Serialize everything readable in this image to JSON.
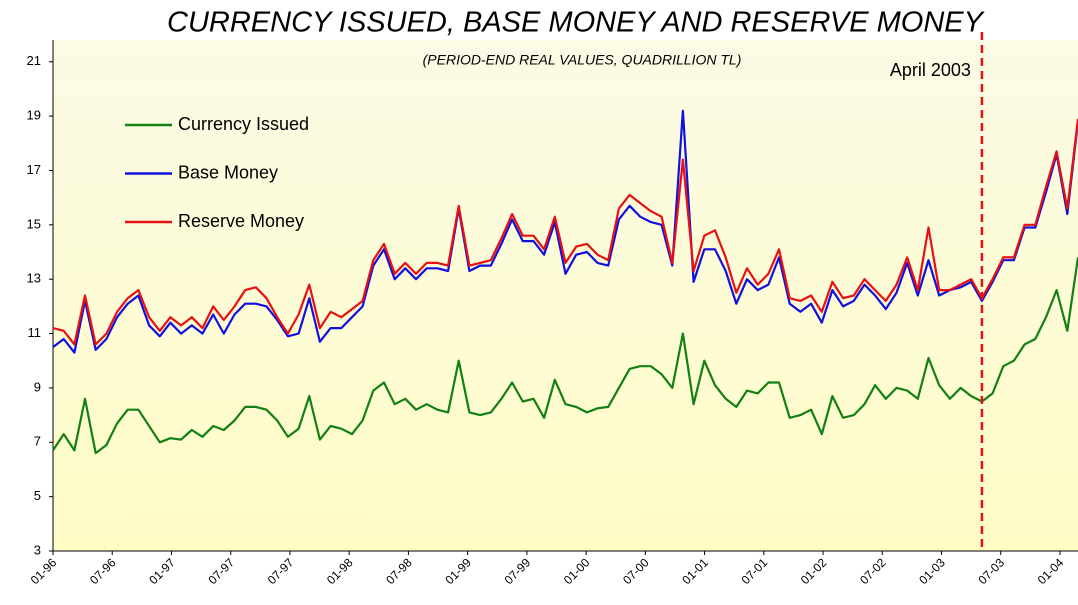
{
  "chart_data": {
    "type": "line",
    "title": "CURRENCY ISSUED, BASE MONEY AND RESERVE MONEY",
    "subtitle": "(PERIOD-END REAL VALUES, QUADRILLION TL)",
    "x_labels": [
      "01-96",
      "07-96",
      "01-97",
      "07-97",
      "07-97",
      "01-98",
      "07-98",
      "01-99",
      "07-99",
      "01-00",
      "07-00",
      "01-01",
      "07-01",
      "01-02",
      "07-02",
      "01-03",
      "07-03",
      "01-04"
    ],
    "ylim": [
      3,
      21.8
    ],
    "yticks": [
      3,
      5,
      7,
      9,
      11,
      13,
      15,
      17,
      19,
      21
    ],
    "legend": "upper-left",
    "series": [
      {
        "name": "Currency Issued",
        "color": "#128012",
        "values": [
          6.7,
          7.3,
          6.7,
          8.6,
          6.6,
          6.9,
          7.7,
          8.2,
          8.2,
          7.6,
          7.0,
          7.15,
          7.1,
          7.45,
          7.2,
          7.6,
          7.45,
          7.8,
          8.3,
          8.3,
          8.2,
          7.8,
          7.2,
          7.5,
          8.7,
          7.1,
          7.6,
          7.5,
          7.3,
          7.8,
          8.9,
          9.2,
          8.4,
          8.6,
          8.2,
          8.4,
          8.2,
          8.1,
          10.0,
          8.1,
          8.0,
          8.1,
          8.6,
          9.2,
          8.5,
          8.6,
          7.9,
          9.3,
          8.4,
          8.3,
          8.1,
          8.25,
          8.3,
          9.0,
          9.7,
          9.8,
          9.8,
          9.5,
          9.0,
          11.0,
          8.4,
          10.0,
          9.1,
          8.6,
          8.3,
          8.9,
          8.8,
          9.2,
          9.2,
          7.9,
          8.0,
          8.2,
          7.3,
          8.7,
          7.9,
          8.0,
          8.4,
          9.1,
          8.6,
          9.0,
          8.9,
          8.6,
          10.1,
          9.1,
          8.6,
          9.0,
          8.7,
          8.5,
          8.8,
          9.8,
          10.0,
          10.6,
          10.8,
          11.6,
          12.6,
          11.1,
          13.8
        ]
      },
      {
        "name": "Base Money",
        "color": "#1010e0",
        "values": [
          10.5,
          10.8,
          10.3,
          12.2,
          10.4,
          10.8,
          11.6,
          12.1,
          12.4,
          11.3,
          10.9,
          11.4,
          11.0,
          11.3,
          11.0,
          11.7,
          11.0,
          11.7,
          12.1,
          12.1,
          12.0,
          11.5,
          10.9,
          11.0,
          12.3,
          10.7,
          11.2,
          11.2,
          11.6,
          12.0,
          13.5,
          14.1,
          13.0,
          13.4,
          13.0,
          13.4,
          13.4,
          13.3,
          15.6,
          13.3,
          13.5,
          13.5,
          14.3,
          15.2,
          14.4,
          14.4,
          13.9,
          15.1,
          13.2,
          13.9,
          14.0,
          13.6,
          13.5,
          15.2,
          15.7,
          15.3,
          15.1,
          15.0,
          13.5,
          19.2,
          12.9,
          14.1,
          14.1,
          13.3,
          12.1,
          13.0,
          12.6,
          12.8,
          13.8,
          12.1,
          11.8,
          12.1,
          11.4,
          12.6,
          12.0,
          12.2,
          12.8,
          12.4,
          11.9,
          12.5,
          13.6,
          12.4,
          13.7,
          12.4,
          12.6,
          12.7,
          12.9,
          12.2,
          12.9,
          13.7,
          13.7,
          14.9,
          14.9,
          16.2,
          17.6,
          15.4,
          18.8
        ]
      },
      {
        "name": "Reserve Money",
        "color": "#e81010",
        "values": [
          11.2,
          11.1,
          10.6,
          12.4,
          10.6,
          11.0,
          11.8,
          12.3,
          12.6,
          11.6,
          11.1,
          11.6,
          11.3,
          11.6,
          11.2,
          12.0,
          11.5,
          12.0,
          12.6,
          12.7,
          12.3,
          11.6,
          11.0,
          11.7,
          12.8,
          11.2,
          11.8,
          11.6,
          11.9,
          12.2,
          13.7,
          14.3,
          13.2,
          13.6,
          13.2,
          13.6,
          13.6,
          13.5,
          15.7,
          13.5,
          13.6,
          13.7,
          14.5,
          15.4,
          14.6,
          14.6,
          14.1,
          15.3,
          13.6,
          14.2,
          14.3,
          13.9,
          13.7,
          15.6,
          16.1,
          15.8,
          15.5,
          15.3,
          13.6,
          17.4,
          13.3,
          14.6,
          14.8,
          13.8,
          12.5,
          13.4,
          12.8,
          13.2,
          14.1,
          12.3,
          12.2,
          12.4,
          11.8,
          12.9,
          12.3,
          12.4,
          13.0,
          12.6,
          12.2,
          12.8,
          13.8,
          12.6,
          14.9,
          12.6,
          12.6,
          12.8,
          13.0,
          12.3,
          13.0,
          13.8,
          13.8,
          15.0,
          15.0,
          16.4,
          17.7,
          15.6,
          18.9
        ]
      }
    ],
    "vline": {
      "index": 87,
      "label": "April 2003",
      "color": "#e81010"
    }
  }
}
